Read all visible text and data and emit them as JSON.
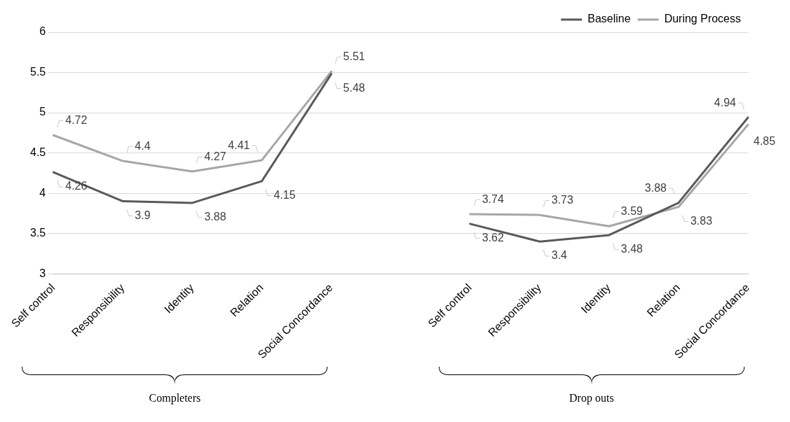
{
  "chart_data": {
    "type": "line",
    "categories": [
      "Self control",
      "Responsibility",
      "Identity",
      "Relation",
      "Social Concordance",
      null,
      "Self control",
      "Responsibility",
      "Identity",
      "Relation",
      "Social Concordance"
    ],
    "series": [
      {
        "name": "Baseline",
        "color": "#595959",
        "values": [
          4.26,
          3.9,
          3.88,
          4.15,
          5.48,
          null,
          3.62,
          3.4,
          3.48,
          3.88,
          4.94
        ]
      },
      {
        "name": "During Process",
        "color": "#a6a6a6",
        "values": [
          4.72,
          4.4,
          4.27,
          4.41,
          5.51,
          null,
          3.74,
          3.73,
          3.59,
          3.83,
          4.85
        ]
      }
    ],
    "ylim": [
      3,
      6
    ],
    "yticks": [
      3,
      3.5,
      4,
      4.5,
      5,
      5.5,
      6
    ],
    "grid": "y",
    "legend": "top right",
    "data_labels": true,
    "marker": "none",
    "line_style": "solid",
    "annotations": [
      "Completers",
      "Drop outs"
    ]
  }
}
